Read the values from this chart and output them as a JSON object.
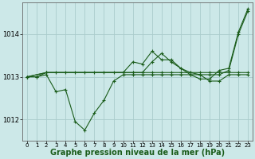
{
  "bg_color": "#cce8e8",
  "grid_color": "#aacccc",
  "line_color": "#1a5c1a",
  "title": "Graphe pression niveau de la mer (hPa)",
  "title_fontsize": 7,
  "xlim": [
    -0.5,
    23.5
  ],
  "ylim": [
    1011.5,
    1014.75
  ],
  "yticks": [
    1012,
    1013,
    1014
  ],
  "xticks": [
    0,
    1,
    2,
    3,
    4,
    5,
    6,
    7,
    8,
    9,
    10,
    11,
    12,
    13,
    14,
    15,
    16,
    17,
    18,
    19,
    20,
    21,
    22,
    23
  ],
  "series": [
    {
      "x": [
        0,
        1,
        2,
        3,
        4,
        5,
        6,
        7,
        8,
        9,
        10,
        11,
        12,
        13,
        14,
        15,
        16,
        17,
        18,
        19,
        20,
        21,
        22,
        23
      ],
      "y": [
        1013.0,
        1013.0,
        1013.05,
        1012.65,
        1012.7,
        1011.95,
        1011.75,
        1012.15,
        1012.45,
        1012.9,
        1013.05,
        1013.05,
        1013.05,
        1013.05,
        1013.05,
        1013.05,
        1013.05,
        1013.05,
        1013.05,
        1012.9,
        1012.9,
        1013.05,
        1013.05,
        1013.05
      ]
    },
    {
      "x": [
        0,
        1,
        2,
        3,
        4,
        5,
        6,
        7,
        8,
        9,
        10,
        11,
        12,
        13,
        14,
        15,
        16,
        17,
        18,
        19,
        20,
        21,
        22,
        23
      ],
      "y": [
        1013.0,
        1013.0,
        1013.1,
        1013.1,
        1013.1,
        1013.1,
        1013.1,
        1013.1,
        1013.1,
        1013.1,
        1013.1,
        1013.1,
        1013.1,
        1013.1,
        1013.1,
        1013.1,
        1013.1,
        1013.1,
        1013.1,
        1013.1,
        1013.1,
        1013.1,
        1013.1,
        1013.1
      ]
    },
    {
      "x": [
        0,
        2,
        10,
        11,
        12,
        13,
        14,
        15,
        16,
        17,
        18,
        19,
        20,
        21,
        22,
        23
      ],
      "y": [
        1013.0,
        1013.1,
        1013.1,
        1013.35,
        1013.3,
        1013.6,
        1013.4,
        1013.4,
        1013.2,
        1013.05,
        1012.95,
        1012.95,
        1013.15,
        1013.2,
        1014.05,
        1014.6
      ]
    },
    {
      "x": [
        0,
        2,
        10,
        11,
        12,
        13,
        14,
        15,
        16,
        17,
        18,
        19,
        20,
        21,
        22,
        23
      ],
      "y": [
        1013.0,
        1013.1,
        1013.1,
        1013.1,
        1013.1,
        1013.35,
        1013.55,
        1013.35,
        1013.2,
        1013.1,
        1013.05,
        1013.05,
        1013.05,
        1013.15,
        1014.0,
        1014.55
      ]
    }
  ]
}
